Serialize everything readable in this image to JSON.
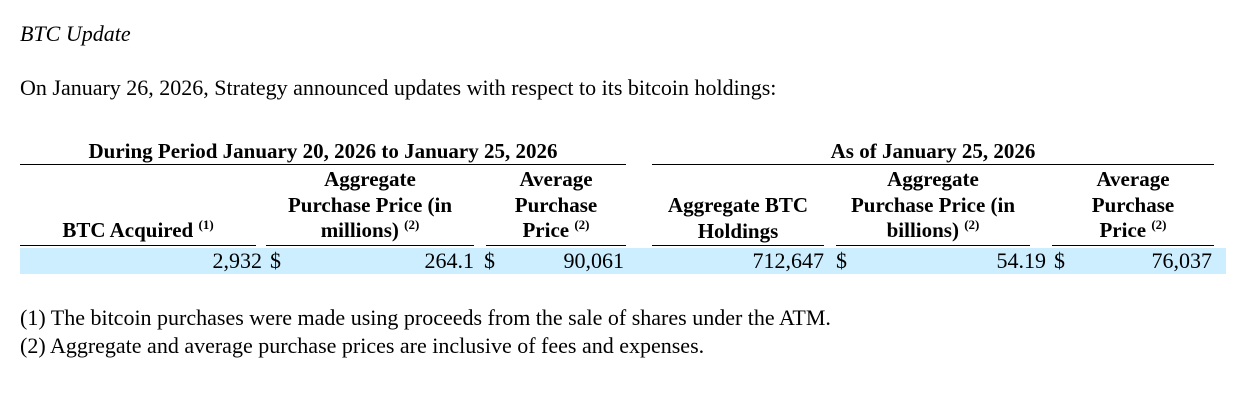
{
  "section_title": "BTC Update",
  "intro": "On January 26, 2026, Strategy announced updates with respect to its bitcoin holdings:",
  "table": {
    "group_period": "During Period January 20, 2026 to January 25, 2026",
    "group_asof": "As of January 25, 2026",
    "headers": {
      "btc_acquired": "BTC Acquired",
      "btc_acquired_note": "(1)",
      "agg_price_millions_line1": "Aggregate",
      "agg_price_millions_line2": "Purchase Price (in",
      "agg_price_millions_line3": "millions)",
      "agg_price_millions_note": "(2)",
      "avg_price_line1": "Average",
      "avg_price_line2": "Purchase",
      "avg_price_line3": "Price",
      "avg_price_note": "(2)",
      "agg_btc_line1": "Aggregate BTC",
      "agg_btc_line2": "Holdings",
      "agg_price_billions_line1": "Aggregate",
      "agg_price_billions_line2": "Purchase Price (in",
      "agg_price_billions_line3": "billions)",
      "agg_price_billions_note": "(2)",
      "avg_price2_line1": "Average",
      "avg_price2_line2": "Purchase",
      "avg_price2_line3": "Price",
      "avg_price2_note": "(2)"
    },
    "row": {
      "btc_acquired": "2,932",
      "currency_1": "$",
      "agg_price_millions": "264.1",
      "currency_2": "$",
      "avg_price": "90,061",
      "agg_btc_holdings": "712,647",
      "currency_3": "$",
      "agg_price_billions": "54.19",
      "currency_4": "$",
      "avg_price2": "76,037"
    },
    "row_highlight_color": "#cceeff"
  },
  "footnotes": [
    "(1) The bitcoin purchases were made using proceeds from the sale of shares under the ATM.",
    "(2) Aggregate and average purchase prices are inclusive of fees and expenses."
  ]
}
